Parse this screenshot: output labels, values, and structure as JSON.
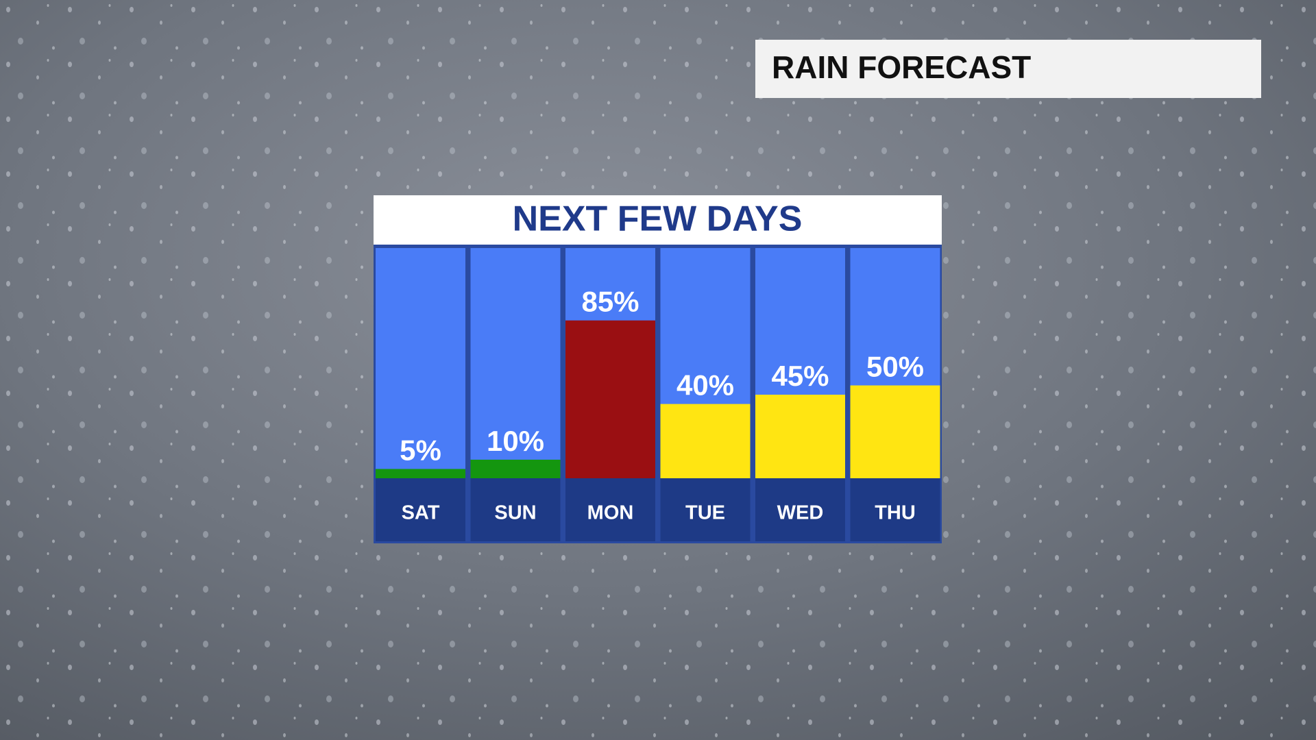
{
  "header": {
    "title": "RAIN FORECAST"
  },
  "chart_data": {
    "type": "bar",
    "title": "NEXT FEW DAYS",
    "categories": [
      "SAT",
      "SUN",
      "MON",
      "TUE",
      "WED",
      "THU"
    ],
    "values": [
      5,
      10,
      85,
      40,
      45,
      50
    ],
    "value_labels": [
      "5%",
      "10%",
      "85%",
      "40%",
      "45%",
      "50%"
    ],
    "colors": [
      "#14960f",
      "#14960f",
      "#9a0f12",
      "#ffe512",
      "#ffe512",
      "#ffe512"
    ],
    "ylim": [
      0,
      100
    ]
  }
}
